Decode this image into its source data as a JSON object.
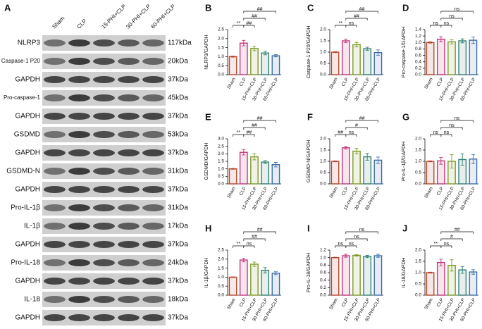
{
  "blot": {
    "panel": "A",
    "lanes": [
      "Sham",
      "CLP",
      "15-PHI+CLP",
      "30-PHI+CLP",
      "60-PHI+CLP"
    ],
    "rows": [
      {
        "protein": "NLRP3",
        "size": "117kDa"
      },
      {
        "protein": "Caspase-1 P20",
        "size": "20kDa"
      },
      {
        "protein": "GAPDH",
        "size": "37kDa"
      },
      {
        "protein": "Pro-caspase-1",
        "size": "45kDa"
      },
      {
        "protein": "GAPDH",
        "size": "37kDa"
      },
      {
        "protein": "GSDMD",
        "size": "53kDa"
      },
      {
        "protein": "GAPDH",
        "size": "37kDa"
      },
      {
        "protein": "GSDMD-N",
        "size": "31kDa"
      },
      {
        "protein": "GAPDH",
        "size": "37kDa"
      },
      {
        "protein": "Pro-IL-1β",
        "size": "31kDa"
      },
      {
        "protein": "IL-1β",
        "size": "17kDa"
      },
      {
        "protein": "GAPDH",
        "size": "37kDa"
      },
      {
        "protein": "Pro-IL-18",
        "size": "24kDa"
      },
      {
        "protein": "GAPDH",
        "size": "37kDa"
      },
      {
        "protein": "IL-18",
        "size": "18kDa"
      },
      {
        "protein": "GAPDH",
        "size": "37kDa"
      }
    ]
  },
  "chart_data": [
    {
      "type": "bar",
      "panel": "B",
      "y_label": "NLRP3/GAPDH",
      "categories": [
        "Sham",
        "CLP",
        "15-PHI+CLP",
        "30-PHI+CLP",
        "60-PHI+CLP"
      ],
      "values": [
        1.0,
        1.75,
        1.45,
        1.2,
        1.05
      ],
      "errors": [
        0.03,
        0.15,
        0.12,
        0.1,
        0.06
      ],
      "colors": [
        "#b8452c",
        "#c2357c",
        "#7c9a26",
        "#2f7f70",
        "#3d6ea8"
      ],
      "ylim": [
        0,
        2.5
      ],
      "yticks": [
        {
          "value": 0,
          "label": "0.0"
        },
        0.5,
        {
          "value": 1,
          "label": "1.0"
        },
        1.5,
        {
          "value": 2,
          "label": "2.0"
        },
        2.5
      ],
      "comparisons": [
        {
          "between": [
            "Sham",
            "CLP"
          ],
          "label": "**"
        },
        {
          "between": [
            "CLP",
            "15-PHI+CLP"
          ],
          "label": "##"
        },
        {
          "between": [
            "CLP",
            "30-PHI+CLP"
          ],
          "label": "##"
        },
        {
          "between": [
            "CLP",
            "60-PHI+CLP"
          ],
          "label": "##"
        }
      ]
    },
    {
      "type": "bar",
      "panel": "C",
      "y_label": "Caspase-1 P20/GAPDH",
      "categories": [
        "Sham",
        "CLP",
        "15-PHI+CLP",
        "30-PHI+CLP",
        "60-PHI+CLP"
      ],
      "values": [
        1.0,
        1.5,
        1.33,
        1.15,
        0.98
      ],
      "errors": [
        0.02,
        0.08,
        0.1,
        0.07,
        0.12
      ],
      "colors": [
        "#b8452c",
        "#c2357c",
        "#7c9a26",
        "#2f7f70",
        "#3d6ea8"
      ],
      "ylim": [
        0,
        2
      ],
      "yticks": [
        {
          "value": 0,
          "label": "0.0"
        },
        0.5,
        {
          "value": 1,
          "label": "1.0"
        },
        1.5,
        {
          "value": 2,
          "label": "2.0"
        }
      ],
      "comparisons": [
        {
          "between": [
            "Sham",
            "CLP"
          ],
          "label": "**"
        },
        {
          "between": [
            "CLP",
            "15-PHI+CLP"
          ],
          "label": "ns"
        },
        {
          "between": [
            "CLP",
            "30-PHI+CLP"
          ],
          "label": "##"
        },
        {
          "between": [
            "CLP",
            "60-PHI+CLP"
          ],
          "label": "##"
        }
      ]
    },
    {
      "type": "bar",
      "panel": "D",
      "y_label": "Pro-caspase-1/GAPDH",
      "categories": [
        "Sham",
        "CLP",
        "15-PHI+CLP",
        "30-PHI+CLP",
        "60-PHI+CLP"
      ],
      "values": [
        1.0,
        1.1,
        1.02,
        1.05,
        1.07
      ],
      "errors": [
        0.02,
        0.08,
        0.07,
        0.06,
        0.1
      ],
      "colors": [
        "#b8452c",
        "#c2357c",
        "#7c9a26",
        "#2f7f70",
        "#3d6ea8"
      ],
      "ylim": [
        0,
        1.4
      ],
      "yticks": [
        {
          "value": 0,
          "label": "0.0"
        },
        0.2,
        0.4,
        0.6,
        0.8,
        {
          "value": 1,
          "label": "1.0"
        },
        1.2,
        1.4
      ],
      "comparisons": [
        {
          "between": [
            "Sham",
            "CLP"
          ],
          "label": "ns"
        },
        {
          "between": [
            "CLP",
            "15-PHI+CLP"
          ],
          "label": "ns"
        },
        {
          "between": [
            "CLP",
            "30-PHI+CLP"
          ],
          "label": "ns"
        },
        {
          "between": [
            "CLP",
            "60-PHI+CLP"
          ],
          "label": "ns"
        }
      ]
    },
    {
      "type": "bar",
      "panel": "E",
      "y_label": "GSDMD/GAPDH",
      "categories": [
        "Sham",
        "CLP",
        "15-PHI+CLP",
        "30-PHI+CLP",
        "60-PHI+CLP"
      ],
      "values": [
        1.0,
        2.1,
        1.8,
        1.45,
        1.28
      ],
      "errors": [
        0.03,
        0.18,
        0.2,
        0.1,
        0.15
      ],
      "colors": [
        "#b8452c",
        "#c2357c",
        "#7c9a26",
        "#2f7f70",
        "#3d6ea8"
      ],
      "ylim": [
        0,
        3
      ],
      "yticks": [
        {
          "value": 0,
          "label": "0.0"
        },
        0.5,
        {
          "value": 1,
          "label": "1.0"
        },
        1.5,
        {
          "value": 2,
          "label": "2.0"
        },
        2.5,
        {
          "value": 3,
          "label": "3.0"
        }
      ],
      "comparisons": [
        {
          "between": [
            "Sham",
            "CLP"
          ],
          "label": "**"
        },
        {
          "between": [
            "CLP",
            "15-PHI+CLP"
          ],
          "label": "##"
        },
        {
          "between": [
            "CLP",
            "30-PHI+CLP"
          ],
          "label": "##"
        },
        {
          "between": [
            "CLP",
            "60-PHI+CLP"
          ],
          "label": "##"
        }
      ]
    },
    {
      "type": "bar",
      "panel": "F",
      "y_label": "GSDMD-N/GAPDH",
      "categories": [
        "Sham",
        "CLP",
        "15-PHI+CLP",
        "30-PHI+CLP",
        "60-PHI+CLP"
      ],
      "values": [
        1.0,
        1.6,
        1.45,
        1.2,
        1.05
      ],
      "errors": [
        0.02,
        0.06,
        0.12,
        0.15,
        0.14
      ],
      "colors": [
        "#b8452c",
        "#c2357c",
        "#7c9a26",
        "#2f7f70",
        "#3d6ea8"
      ],
      "ylim": [
        0,
        2
      ],
      "yticks": [
        {
          "value": 0,
          "label": "0.0"
        },
        0.5,
        {
          "value": 1,
          "label": "1.0"
        },
        1.5,
        {
          "value": 2,
          "label": "2.0"
        }
      ],
      "comparisons": [
        {
          "between": [
            "Sham",
            "CLP"
          ],
          "label": "##"
        },
        {
          "between": [
            "CLP",
            "15-PHI+CLP"
          ],
          "label": "ns"
        },
        {
          "between": [
            "CLP",
            "30-PHI+CLP"
          ],
          "label": "#"
        },
        {
          "between": [
            "CLP",
            "60-PHI+CLP"
          ],
          "label": "##"
        }
      ]
    },
    {
      "type": "bar",
      "panel": "G",
      "y_label": "Pro-IL-1β/GAPDH",
      "categories": [
        "Sham",
        "CLP",
        "15-PHI+CLP",
        "30-PHI+CLP",
        "60-PHI+CLP"
      ],
      "values": [
        1.0,
        1.02,
        1.0,
        1.08,
        1.1
      ],
      "errors": [
        0.02,
        0.15,
        0.3,
        0.25,
        0.2
      ],
      "colors": [
        "#b8452c",
        "#c2357c",
        "#7c9a26",
        "#2f7f70",
        "#3d6ea8"
      ],
      "ylim": [
        0,
        2
      ],
      "yticks": [
        {
          "value": 0,
          "label": "0.0"
        },
        0.5,
        {
          "value": 1,
          "label": "1.0"
        },
        1.5,
        {
          "value": 2,
          "label": "2.0"
        }
      ],
      "comparisons": [
        {
          "between": [
            "Sham",
            "CLP"
          ],
          "label": "ns"
        },
        {
          "between": [
            "CLP",
            "15-PHI+CLP"
          ],
          "label": "ns"
        },
        {
          "between": [
            "CLP",
            "30-PHI+CLP"
          ],
          "label": "ns"
        },
        {
          "between": [
            "CLP",
            "60-PHI+CLP"
          ],
          "label": "ns"
        }
      ]
    },
    {
      "type": "bar",
      "panel": "H",
      "y_label": "IL-1β/GAPDH",
      "categories": [
        "Sham",
        "CLP",
        "15-PHI+CLP",
        "30-PHI+CLP",
        "60-PHI+CLP"
      ],
      "values": [
        1.0,
        1.95,
        1.72,
        1.38,
        1.22
      ],
      "errors": [
        0.02,
        0.1,
        0.12,
        0.15,
        0.08
      ],
      "colors": [
        "#b8452c",
        "#c2357c",
        "#7c9a26",
        "#2f7f70",
        "#3d6ea8"
      ],
      "ylim": [
        0,
        2.5
      ],
      "yticks": [
        {
          "value": 0,
          "label": "0.0"
        },
        0.5,
        {
          "value": 1,
          "label": "1.0"
        },
        1.5,
        {
          "value": 2,
          "label": "2.0"
        },
        2.5
      ],
      "comparisons": [
        {
          "between": [
            "Sham",
            "CLP"
          ],
          "label": "**"
        },
        {
          "between": [
            "CLP",
            "15-PHI+CLP"
          ],
          "label": "ns"
        },
        {
          "between": [
            "CLP",
            "30-PHI+CLP"
          ],
          "label": "##"
        },
        {
          "between": [
            "CLP",
            "60-PHI+CLP"
          ],
          "label": "##"
        }
      ]
    },
    {
      "type": "bar",
      "panel": "I",
      "y_label": "Pro-IL-18/GAPDH",
      "categories": [
        "Sham",
        "CLP",
        "15-PHI+CLP",
        "30-PHI+CLP",
        "60-PHI+CLP"
      ],
      "values": [
        1.0,
        1.05,
        1.06,
        1.03,
        1.05
      ],
      "errors": [
        0.01,
        0.04,
        0.02,
        0.03,
        0.04
      ],
      "colors": [
        "#b8452c",
        "#c2357c",
        "#7c9a26",
        "#2f7f70",
        "#3d6ea8"
      ],
      "ylim": [
        0,
        1.2
      ],
      "yticks": [
        {
          "value": 0,
          "label": "0.0"
        },
        0.2,
        0.4,
        0.6,
        0.8,
        {
          "value": 1,
          "label": "1.0"
        },
        1.2
      ],
      "comparisons": [
        {
          "between": [
            "Sham",
            "CLP"
          ],
          "label": "ns"
        },
        {
          "between": [
            "CLP",
            "15-PHI+CLP"
          ],
          "label": "ns"
        },
        {
          "between": [
            "CLP",
            "30-PHI+CLP"
          ],
          "label": "ns"
        },
        {
          "between": [
            "CLP",
            "60-PHI+CLP"
          ],
          "label": "ns"
        }
      ]
    },
    {
      "type": "bar",
      "panel": "J",
      "y_label": "IL-18/GAPDH",
      "categories": [
        "Sham",
        "CLP",
        "15-PHI+CLP",
        "30-PHI+CLP",
        "60-PHI+CLP"
      ],
      "values": [
        1.0,
        1.45,
        1.32,
        1.12,
        1.03
      ],
      "errors": [
        0.02,
        0.15,
        0.25,
        0.15,
        0.1
      ],
      "colors": [
        "#b8452c",
        "#c2357c",
        "#7c9a26",
        "#2f7f70",
        "#3d6ea8"
      ],
      "ylim": [
        0,
        2
      ],
      "yticks": [
        {
          "value": 0,
          "label": "0.0"
        },
        0.5,
        {
          "value": 1,
          "label": "1.0"
        },
        1.5,
        {
          "value": 2,
          "label": "2.0"
        }
      ],
      "comparisons": [
        {
          "between": [
            "Sham",
            "CLP"
          ],
          "label": "**"
        },
        {
          "between": [
            "CLP",
            "15-PHI+CLP"
          ],
          "label": "ns"
        },
        {
          "between": [
            "CLP",
            "30-PHI+CLP"
          ],
          "label": "#"
        },
        {
          "between": [
            "CLP",
            "60-PHI+CLP"
          ],
          "label": "##"
        }
      ]
    }
  ]
}
